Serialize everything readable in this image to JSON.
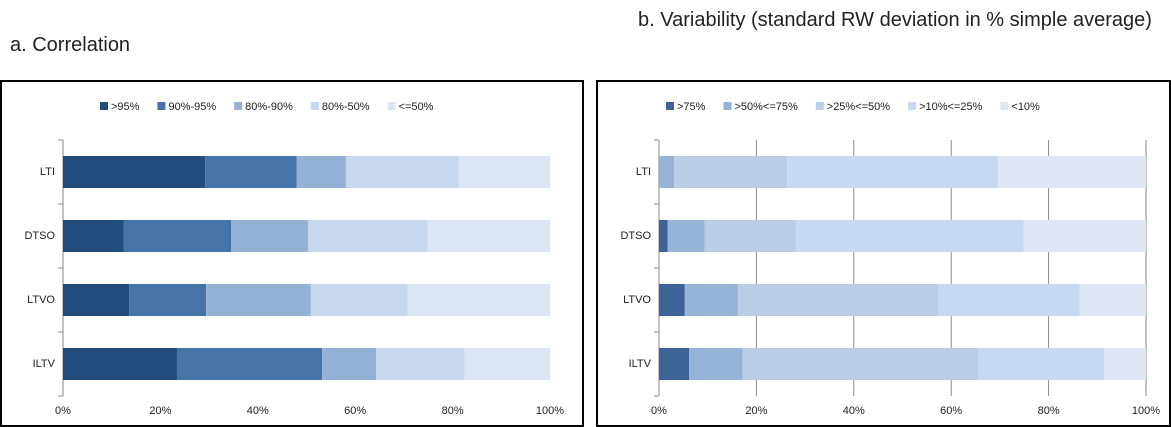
{
  "chart_data": [
    {
      "type": "bar",
      "orientation": "horizontal",
      "stacked": true,
      "title": "a.  Correlation",
      "categories": [
        "LTI",
        "DTSO",
        "LTVO",
        "ILTV"
      ],
      "series": [
        {
          "name": ">95%",
          "color": "#244b7d",
          "values": [
            29.2,
            12.5,
            13.6,
            23.4
          ]
        },
        {
          "name": "90%-95%",
          "color": "#4673a8",
          "values": [
            18.8,
            22.0,
            15.8,
            29.8
          ]
        },
        {
          "name": "80%-90%",
          "color": "#95b1d5",
          "values": [
            10.1,
            15.8,
            21.5,
            11.1
          ]
        },
        {
          "name": "80%-50%",
          "color": "#c6d7ee",
          "values": [
            23.2,
            24.6,
            19.9,
            18.2
          ]
        },
        {
          "name": "<=50%",
          "color": "#dce5f2",
          "values": [
            18.7,
            25.1,
            29.2,
            17.5
          ]
        }
      ],
      "xlim": [
        0,
        100
      ],
      "xticks": [
        {
          "value": 0,
          "label": "0%"
        },
        {
          "value": 20,
          "label": "20%"
        },
        {
          "value": 40,
          "label": "40%"
        },
        {
          "value": 60,
          "label": "60%"
        },
        {
          "value": 80,
          "label": "80%"
        },
        {
          "value": 100,
          "label": "100%"
        }
      ],
      "grid": false
    },
    {
      "type": "bar",
      "orientation": "horizontal",
      "stacked": true,
      "title": "b.  Variability (standard RW deviation in % simple average)",
      "categories": [
        "LTI",
        "DTSO",
        "LTVO",
        "ILTV"
      ],
      "series": [
        {
          "name": ">75%",
          "color": "#3b6397",
          "values": [
            0,
            1.8,
            5.3,
            6.2
          ]
        },
        {
          "name": ">50%<=75%",
          "color": "#96b3d7",
          "values": [
            3.1,
            7.6,
            10.9,
            11.0
          ]
        },
        {
          "name": ">25%<=50%",
          "color": "#bacde5",
          "values": [
            23.2,
            18.7,
            41.1,
            48.3
          ]
        },
        {
          "name": ">10%<=25%",
          "color": "#c7d9f0",
          "values": [
            43.3,
            46.8,
            29.1,
            25.9
          ]
        },
        {
          "name": "<10%",
          "color": "#dde6f2",
          "values": [
            30.4,
            25.1,
            13.6,
            8.6
          ]
        }
      ],
      "xlim": [
        0,
        100
      ],
      "xticks": [
        {
          "value": 0,
          "label": "0%"
        },
        {
          "value": 20,
          "label": "20%"
        },
        {
          "value": 40,
          "label": "40%"
        },
        {
          "value": 60,
          "label": "60%"
        },
        {
          "value": 80,
          "label": "80%"
        },
        {
          "value": 100,
          "label": "100%"
        }
      ],
      "grid": true
    }
  ]
}
